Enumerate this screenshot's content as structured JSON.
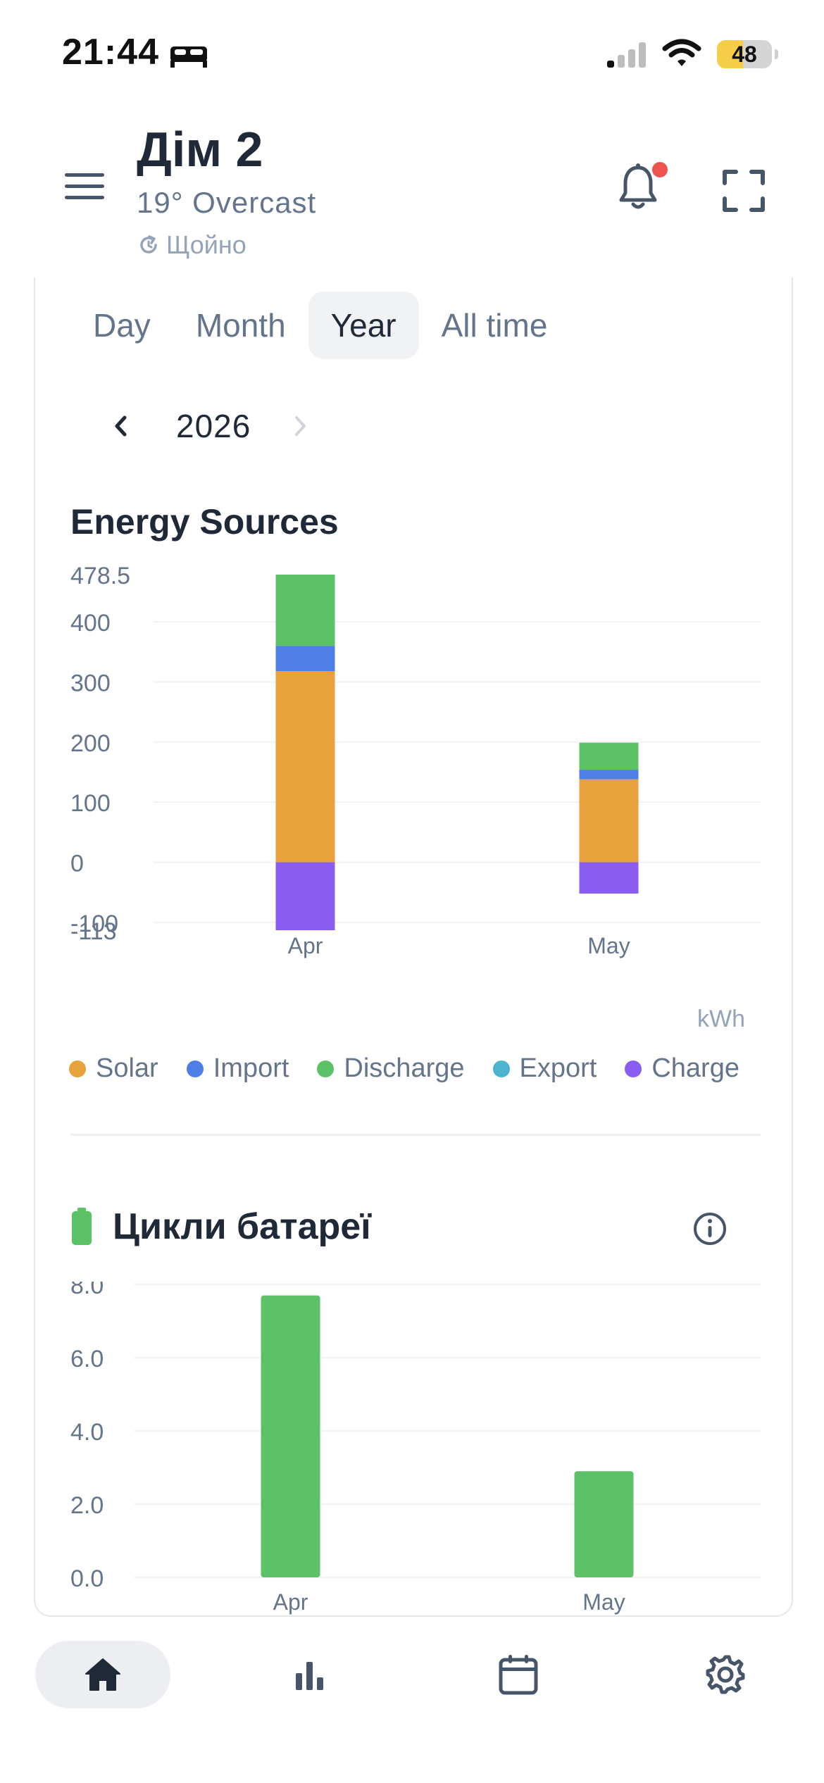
{
  "status": {
    "time": "21:44",
    "battery": "48",
    "battery_level": 0.48
  },
  "header": {
    "title": "Дім 2",
    "weather": "19° Overcast",
    "updated": "Щойно"
  },
  "tabs": [
    {
      "label": "Day",
      "active": false
    },
    {
      "label": "Month",
      "active": false
    },
    {
      "label": "Year",
      "active": true
    },
    {
      "label": "All time",
      "active": false
    }
  ],
  "period": {
    "year": "2026"
  },
  "energy": {
    "title": "Energy Sources",
    "unit": "kWh",
    "legend": [
      {
        "label": "Solar",
        "color": "#e8a23c"
      },
      {
        "label": "Import",
        "color": "#4f7fe6"
      },
      {
        "label": "Discharge",
        "color": "#5cc268"
      },
      {
        "label": "Export",
        "color": "#4db4d0"
      },
      {
        "label": "Charge",
        "color": "#8b5cf0"
      }
    ]
  },
  "cycles": {
    "title": "Цикли батареї"
  },
  "colors": {
    "accent": "#5cc268",
    "text": "#1f2937",
    "muted": "#64748b"
  },
  "nav": [
    {
      "icon": "home-icon",
      "active": true
    },
    {
      "icon": "bar-chart-icon",
      "active": false
    },
    {
      "icon": "calendar-icon",
      "active": false
    },
    {
      "icon": "gear-icon",
      "active": false
    }
  ],
  "chart_data": [
    {
      "type": "bar",
      "stacked": true,
      "title": "Energy Sources",
      "ylabel": "kWh",
      "categories": [
        "Apr",
        "May"
      ],
      "ylim": [
        -113,
        478.5
      ],
      "yticks": [
        -113,
        -100,
        0,
        100,
        200,
        300,
        400,
        478.5
      ],
      "ytick_labels": [
        "-113",
        "-100",
        "0",
        "100",
        "200",
        "300",
        "400",
        "478.5"
      ],
      "series": [
        {
          "name": "Solar",
          "color": "#e8a23c",
          "values": [
            318,
            138
          ]
        },
        {
          "name": "Import",
          "color": "#4f7fe6",
          "values": [
            42,
            16
          ]
        },
        {
          "name": "Discharge",
          "color": "#5cc268",
          "values": [
            118.5,
            45
          ]
        },
        {
          "name": "Export",
          "color": "#4db4d0",
          "values": [
            0,
            0
          ]
        },
        {
          "name": "Charge",
          "color": "#8b5cf0",
          "values": [
            -113,
            -52
          ]
        }
      ],
      "grid": true,
      "legend_position": "bottom"
    },
    {
      "type": "bar",
      "title": "Цикли батареї",
      "categories": [
        "Apr",
        "May"
      ],
      "values": [
        7.7,
        2.9
      ],
      "color": "#5cc268",
      "ylim": [
        0,
        8
      ],
      "yticks": [
        0,
        2,
        4,
        6,
        8
      ],
      "ytick_labels": [
        "0.0",
        "2.0",
        "4.0",
        "6.0",
        "8.0"
      ],
      "grid": true
    }
  ]
}
